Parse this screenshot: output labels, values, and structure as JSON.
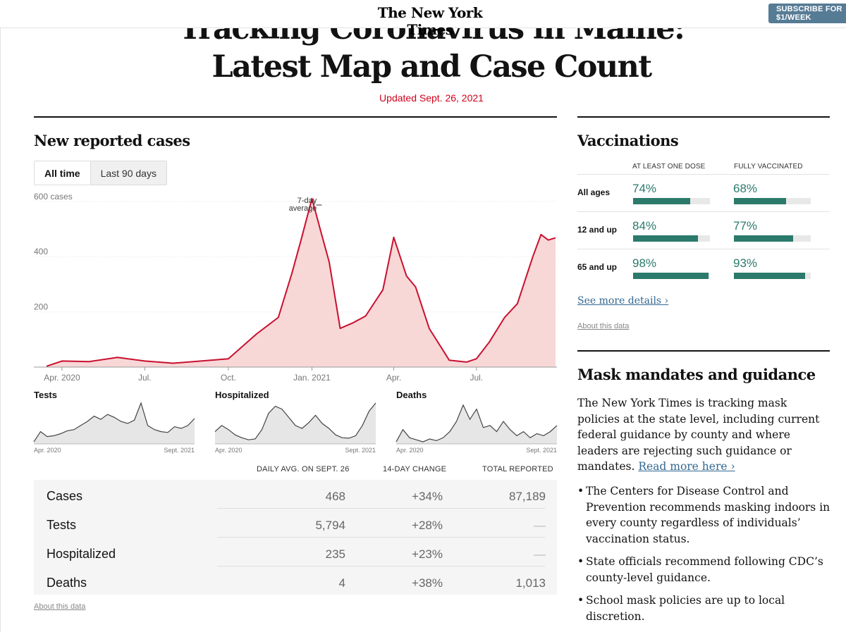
{
  "header": {
    "logo": "The New York Times",
    "subscribe_label": "SUBSCRIBE FOR $1/WEEK"
  },
  "article": {
    "headline_line1": "Tracking Coronavirus in Maine:",
    "headline_line2": "Latest Map and Case Count",
    "updated": "Updated Sept. 26, 2021"
  },
  "cases_section": {
    "title": "New reported cases",
    "toggle": [
      "All time",
      "Last 90 days"
    ],
    "selected_toggle": "All time",
    "annotation": [
      "7-day",
      "average"
    ]
  },
  "chart_data": [
    {
      "type": "area",
      "title": "New reported cases",
      "series": [
        {
          "name": "7-day average",
          "color": "#c8102e",
          "fill": "#f8d7d7"
        }
      ],
      "x": [
        "2020-03-15",
        "2020-04-01",
        "2020-05-01",
        "2020-06-01",
        "2020-07-01",
        "2020-08-01",
        "2020-09-01",
        "2020-10-01",
        "2020-11-01",
        "2020-11-25",
        "2020-12-10",
        "2020-12-20",
        "2021-01-01",
        "2021-01-10",
        "2021-01-20",
        "2021-02-01",
        "2021-02-15",
        "2021-03-01",
        "2021-03-20",
        "2021-04-01",
        "2021-04-15",
        "2021-04-25",
        "2021-05-10",
        "2021-06-01",
        "2021-06-20",
        "2021-07-01",
        "2021-07-15",
        "2021-08-01",
        "2021-08-15",
        "2021-09-01",
        "2021-09-10",
        "2021-09-18",
        "2021-09-26"
      ],
      "y": [
        3,
        22,
        20,
        35,
        22,
        14,
        22,
        30,
        120,
        180,
        340,
        460,
        610,
        500,
        380,
        140,
        160,
        185,
        280,
        470,
        330,
        290,
        140,
        25,
        18,
        30,
        90,
        180,
        230,
        400,
        480,
        460,
        468
      ],
      "xticks": [
        "Apr. 2020",
        "Jul.",
        "Oct.",
        "Jan. 2021",
        "Apr.",
        "Jul."
      ],
      "yticks": [
        "600 cases",
        "400",
        "200"
      ],
      "ylim": [
        0,
        620
      ],
      "grid": true
    },
    {
      "type": "area",
      "title": "Tests",
      "x_start": "Apr. 2020",
      "x_end": "Sept. 2021",
      "y": [
        0.05,
        0.3,
        0.18,
        0.2,
        0.25,
        0.32,
        0.35,
        0.45,
        0.55,
        0.68,
        0.6,
        0.72,
        0.65,
        0.55,
        0.5,
        0.58,
        1.0,
        0.45,
        0.35,
        0.3,
        0.28,
        0.42,
        0.38,
        0.45,
        0.62
      ]
    },
    {
      "type": "area",
      "title": "Hospitalized",
      "x_start": "Apr. 2020",
      "x_end": "Sept. 2021",
      "y": [
        0.3,
        0.45,
        0.35,
        0.22,
        0.15,
        0.1,
        0.12,
        0.35,
        0.75,
        0.92,
        0.85,
        0.65,
        0.45,
        0.38,
        0.52,
        0.7,
        0.5,
        0.38,
        0.22,
        0.15,
        0.14,
        0.2,
        0.45,
        0.8,
        1.0
      ]
    },
    {
      "type": "area",
      "title": "Deaths",
      "x_start": "Apr. 2020",
      "x_end": "Sept. 2021",
      "y": [
        0.05,
        0.35,
        0.15,
        0.1,
        0.05,
        0.12,
        0.08,
        0.15,
        0.3,
        0.55,
        0.95,
        0.6,
        0.85,
        0.4,
        0.45,
        0.3,
        0.55,
        0.35,
        0.2,
        0.3,
        0.15,
        0.25,
        0.2,
        0.3,
        0.45
      ]
    }
  ],
  "stats": {
    "headers": [
      "DAILY AVG. ON SEPT. 26",
      "14-DAY CHANGE",
      "TOTAL REPORTED"
    ],
    "rows": [
      {
        "name": "Cases",
        "avg": "468",
        "change": "+34%",
        "total": "87,189"
      },
      {
        "name": "Tests",
        "avg": "5,794",
        "change": "+28%",
        "total": "—"
      },
      {
        "name": "Hospitalized",
        "avg": "235",
        "change": "+23%",
        "total": "—"
      },
      {
        "name": "Deaths",
        "avg": "4",
        "change": "+38%",
        "total": "1,013"
      }
    ],
    "about": "About this data"
  },
  "vaccinations": {
    "title": "Vaccinations",
    "col1": "AT LEAST ONE DOSE",
    "col2": "FULLY VACCINATED",
    "rows": [
      {
        "label": "All ages",
        "one_dose": "74%",
        "one_dose_value": 0.74,
        "full": "68%",
        "full_value": 0.68
      },
      {
        "label": "12 and up",
        "one_dose": "84%",
        "one_dose_value": 0.84,
        "full": "77%",
        "full_value": 0.77
      },
      {
        "label": "65 and up",
        "one_dose": "98%",
        "one_dose_value": 0.98,
        "full": "93%",
        "full_value": 0.93
      }
    ],
    "see_more": "See more details ›",
    "about": "About this data",
    "bar_color": "#2b7a6b"
  },
  "masks": {
    "title": "Mask mandates and guidance",
    "intro": "The New York Times is tracking mask policies at the state level, including current federal guidance by county and where leaders are rejecting such guidance or mandates.",
    "read_more": "Read more here ›",
    "bullets": [
      "The Centers for Disease Control and Prevention recommends masking indoors in every county regardless of individuals’ vaccination status.",
      "State officials recommend following CDC’s county-level guidance.",
      "School mask policies are up to local discretion."
    ]
  }
}
